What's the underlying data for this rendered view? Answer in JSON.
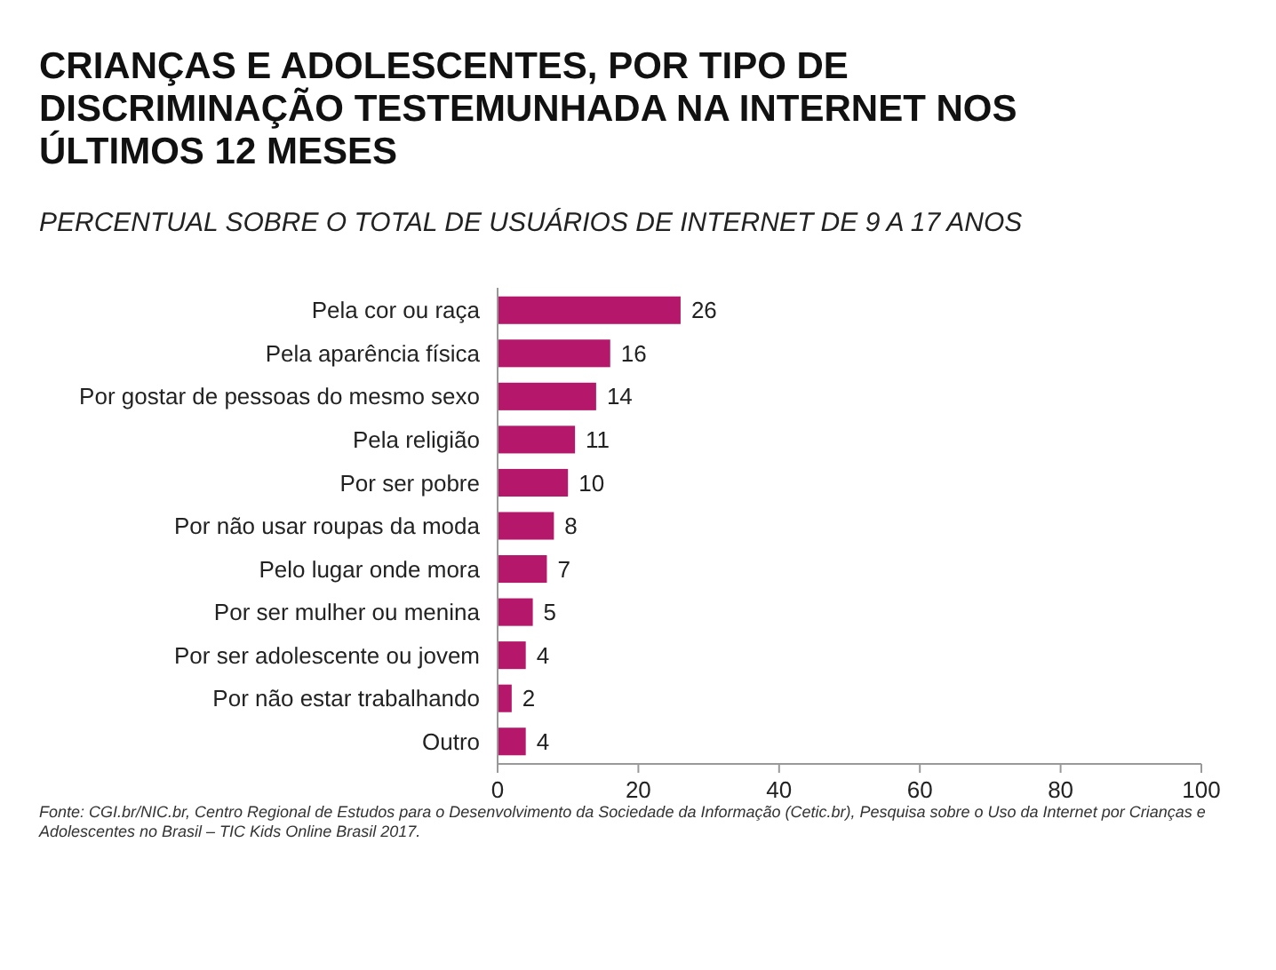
{
  "chart_data": {
    "type": "bar",
    "orientation": "horizontal",
    "title": "CRIANÇAS E ADOLESCENTES, POR TIPO DE DISCRIMINAÇÃO TESTEMUNHADA NA INTERNET NOS ÚLTIMOS 12 MESES",
    "subtitle": "PERCENTUAL SOBRE O TOTAL DE USUÁRIOS DE INTERNET DE 9 A 17 ANOS",
    "categories": [
      "Pela cor ou raça",
      "Pela aparência física",
      "Por gostar de pessoas do mesmo sexo",
      "Pela religião",
      "Por ser pobre",
      "Por não usar roupas da moda",
      "Pelo lugar onde mora",
      "Por ser mulher ou menina",
      "Por ser adolescente ou jovem",
      "Por não estar trabalhando",
      "Outro"
    ],
    "values": [
      26,
      16,
      14,
      11,
      10,
      8,
      7,
      5,
      4,
      2,
      4
    ],
    "color": "#b5176b",
    "data_labels": true,
    "xlim": [
      0,
      100
    ],
    "xticks": [
      0,
      20,
      40,
      60,
      80,
      100
    ],
    "grid": false,
    "annotations": [
      "Fonte: CGI.br/NIC.br, Centro Regional de Estudos para o Desenvolvimento da Sociedade da Informação (Cetic.br), Pesquisa sobre o Uso da Internet por Crianças e Adolescentes no Brasil – TIC Kids Online Brasil 2017."
    ]
  }
}
